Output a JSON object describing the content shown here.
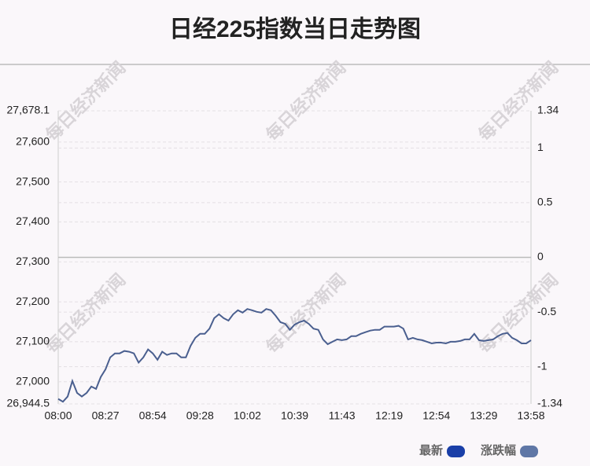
{
  "chart_data": {
    "type": "line",
    "title": "日经225指数当日走势图",
    "watermark": "每日经济新闻",
    "categories": [
      "08:00",
      null,
      null,
      null,
      null,
      null,
      null,
      null,
      null,
      null,
      "08:27",
      null,
      null,
      null,
      null,
      null,
      null,
      null,
      null,
      null,
      "08:54",
      null,
      null,
      null,
      null,
      null,
      null,
      null,
      null,
      null,
      "09:28",
      null,
      null,
      null,
      null,
      null,
      null,
      null,
      null,
      null,
      "10:02",
      null,
      null,
      null,
      null,
      null,
      null,
      null,
      null,
      null,
      "10:39",
      null,
      null,
      null,
      null,
      null,
      null,
      null,
      null,
      null,
      "11:43",
      null,
      null,
      null,
      null,
      null,
      null,
      null,
      null,
      null,
      "12:19",
      null,
      null,
      null,
      null,
      null,
      null,
      null,
      null,
      null,
      "12:54",
      null,
      null,
      null,
      null,
      null,
      null,
      null,
      null,
      null,
      "13:29",
      null,
      null,
      null,
      null,
      null,
      null,
      null,
      null,
      null,
      "13:58"
    ],
    "series": [
      {
        "name": "最新",
        "color": "#4a5f8f",
        "values": [
          26957,
          26950,
          26963,
          27002,
          26972,
          26963,
          26972,
          26988,
          26982,
          27012,
          27031,
          27061,
          27071,
          27071,
          27077,
          27075,
          27071,
          27048,
          27061,
          27081,
          27071,
          27055,
          27075,
          27067,
          27071,
          27071,
          27061,
          27061,
          27090,
          27110,
          27120,
          27120,
          27133,
          27159,
          27169,
          27159,
          27153,
          27169,
          27179,
          27173,
          27182,
          27179,
          27175,
          27173,
          27182,
          27179,
          27165,
          27149,
          27145,
          27130,
          27143,
          27149,
          27153,
          27145,
          27133,
          27130,
          27106,
          27094,
          27100,
          27106,
          27104,
          27106,
          27114,
          27114,
          27120,
          27124,
          27128,
          27130,
          27130,
          27138,
          27138,
          27138,
          27140,
          27133,
          27106,
          27110,
          27106,
          27104,
          27100,
          27096,
          27098,
          27098,
          27096,
          27100,
          27100,
          27102,
          27106,
          27106,
          27120,
          27104,
          27102,
          27104,
          27106,
          27114,
          27120,
          27122,
          27110,
          27104,
          27096,
          27096,
          27104
        ]
      }
    ],
    "legend": [
      {
        "name": "最新",
        "color": "#1a3fa8"
      },
      {
        "name": "涨跌幅",
        "color": "#5f77a6"
      }
    ],
    "ylim": [
      26944.5,
      27678.1
    ],
    "yticks": [
      {
        "value": 26944.5,
        "label": "26,944.5"
      },
      {
        "value": 27000,
        "label": "27,000"
      },
      {
        "value": 27100,
        "label": "27,100"
      },
      {
        "value": 27200,
        "label": "27,200"
      },
      {
        "value": 27300,
        "label": "27,300"
      },
      {
        "value": 27400,
        "label": "27,400"
      },
      {
        "value": 27500,
        "label": "27,500"
      },
      {
        "value": 27600,
        "label": "27,600"
      },
      {
        "value": 27678.1,
        "label": "27,678.1"
      }
    ],
    "y2lim": [
      -1.34,
      1.34
    ],
    "y2ticks": [
      -1.34,
      -1,
      -0.5,
      0,
      0.5,
      1,
      1.34
    ],
    "grid": true
  }
}
